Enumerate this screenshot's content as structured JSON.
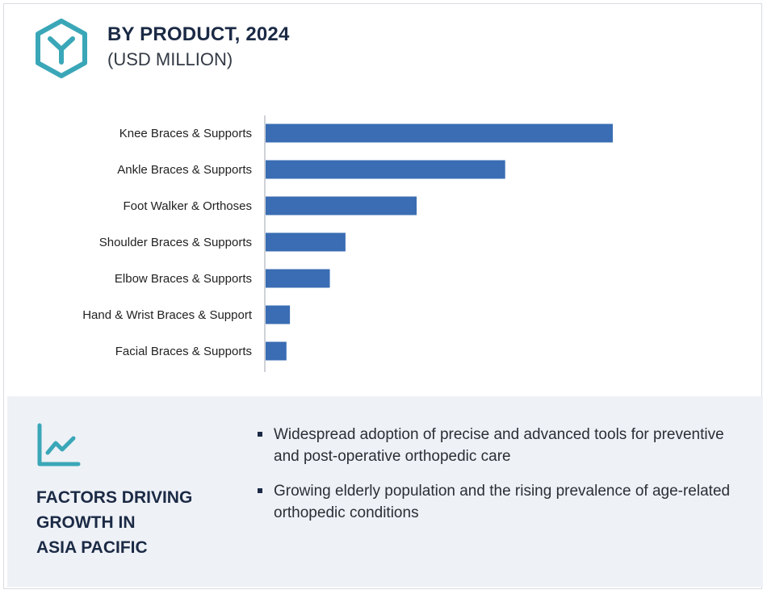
{
  "header": {
    "icon": "hexagon-y-icon",
    "title": "BY PRODUCT, 2024",
    "subtitle": "(USD MILLION)"
  },
  "chart_data": {
    "type": "bar",
    "orientation": "horizontal",
    "title": "BY PRODUCT, 2024",
    "subtitle": "(USD MILLION)",
    "categories": [
      "Knee Braces & Supports",
      "Ankle Braces & Supports",
      "Foot Walker & Orthoses",
      "Shoulder Braces & Supports",
      "Elbow Braces & Supports",
      "Hand & Wrist Braces & Support",
      "Facial Braces & Supports"
    ],
    "values": [
      100,
      69,
      43.5,
      23,
      18.5,
      7,
      6
    ],
    "value_note": "relative magnitudes estimated from bar lengths; no value axis printed",
    "xlim": [
      0,
      100
    ],
    "grid": false,
    "legend": "none",
    "bar_color": "#3a6db3",
    "axis_color": "#bfc4ca"
  },
  "factors": {
    "icon": "trend-line-icon",
    "title_lines": [
      "FACTORS DRIVING",
      "GROWTH  IN",
      "ASIA PACIFIC"
    ],
    "bullets": [
      "Widespread adoption of precise and advanced tools for preventive and post-operative  orthopedic care",
      "Growing elderly population and the rising prevalence of age-related orthopedic conditions"
    ]
  },
  "colors": {
    "accent_teal": "#3aa7b8",
    "title_navy": "#1b2a45",
    "panel_bg": "#eef1f6"
  }
}
